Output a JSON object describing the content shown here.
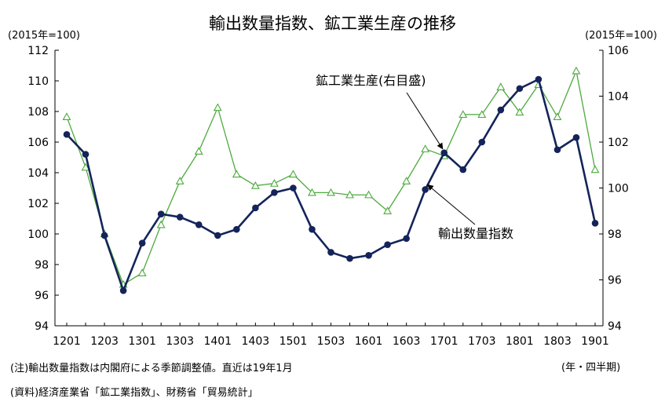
{
  "title": "輸出数量指数、鉱工業生産の推移",
  "left_unit": "(2015年=100)",
  "right_unit": "(2015年=100)",
  "x_unit": "(年・四半期)",
  "note": "(注)輸出数量指数は内閣府による季節調整値。直近は19年1月",
  "source": "(資料)経済産業省「鉱工業指数」、財務省「貿易統計」",
  "colors": {
    "export": "#14245a",
    "production": "#4caa3c",
    "axis": "#000000"
  },
  "chart_data": {
    "type": "line",
    "x": [
      "1201",
      "1202",
      "1203",
      "1204",
      "1301",
      "1302",
      "1303",
      "1304",
      "1401",
      "1402",
      "1403",
      "1404",
      "1501",
      "1502",
      "1503",
      "1504",
      "1601",
      "1602",
      "1603",
      "1604",
      "1701",
      "1702",
      "1703",
      "1704",
      "1801",
      "1802",
      "1803",
      "1804",
      "1901"
    ],
    "x_tick_labels": [
      "1201",
      "1203",
      "1301",
      "1303",
      "1401",
      "1403",
      "1501",
      "1503",
      "1601",
      "1603",
      "1701",
      "1703",
      "1801",
      "1803",
      "1901"
    ],
    "y_left": {
      "min": 94,
      "max": 112,
      "ticks": [
        94,
        96,
        98,
        100,
        102,
        104,
        106,
        108,
        110,
        112
      ]
    },
    "y_right": {
      "min": 94,
      "max": 106,
      "ticks": [
        94,
        96,
        98,
        100,
        102,
        104,
        106
      ]
    },
    "grid": false,
    "series": [
      {
        "name": "輸出数量指数",
        "axis": "left",
        "marker": "filled-circle",
        "values": [
          106.5,
          105.2,
          99.9,
          96.3,
          99.4,
          101.3,
          101.1,
          100.6,
          99.9,
          100.3,
          101.7,
          102.7,
          103.0,
          100.3,
          98.8,
          98.4,
          98.6,
          99.3,
          99.7,
          102.9,
          105.3,
          104.2,
          106.0,
          108.1,
          109.5,
          110.1,
          105.5,
          106.3,
          100.7
        ]
      },
      {
        "name": "鉱工業生産(右目盛)",
        "axis": "right",
        "marker": "hollow-triangle",
        "values": [
          103.1,
          100.9,
          98.0,
          95.8,
          96.3,
          98.4,
          100.3,
          101.6,
          103.5,
          100.6,
          100.1,
          100.2,
          100.6,
          99.8,
          99.8,
          99.7,
          99.7,
          99.0,
          100.3,
          101.7,
          101.4,
          103.2,
          103.2,
          104.4,
          103.3,
          104.5,
          103.1,
          105.1,
          100.8
        ]
      }
    ],
    "annotations": [
      {
        "text": "鉱工業生産(右目盛)",
        "target_series": 1
      },
      {
        "text": "輸出数量指数",
        "target_series": 0
      }
    ]
  }
}
